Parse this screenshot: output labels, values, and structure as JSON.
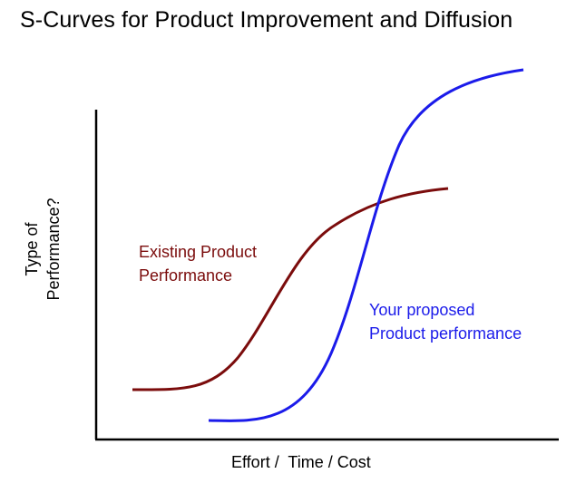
{
  "title": "S-Curves for Product Improvement and Diffusion",
  "axes": {
    "y_label_line1": "Type of",
    "y_label_line2": "Performance?",
    "x_label": "Effort /  Time / Cost"
  },
  "curves": [
    {
      "id": "existing",
      "label_line1": "Existing Product",
      "label_line2": "Performance",
      "color": "#7b0c0c"
    },
    {
      "id": "proposed",
      "label_line1": "Your proposed",
      "label_line2": "Product performance",
      "color": "#1b1bea"
    }
  ],
  "colors": {
    "axis": "#000000",
    "existing": "#7b0c0c",
    "proposed": "#1b1bea"
  }
}
